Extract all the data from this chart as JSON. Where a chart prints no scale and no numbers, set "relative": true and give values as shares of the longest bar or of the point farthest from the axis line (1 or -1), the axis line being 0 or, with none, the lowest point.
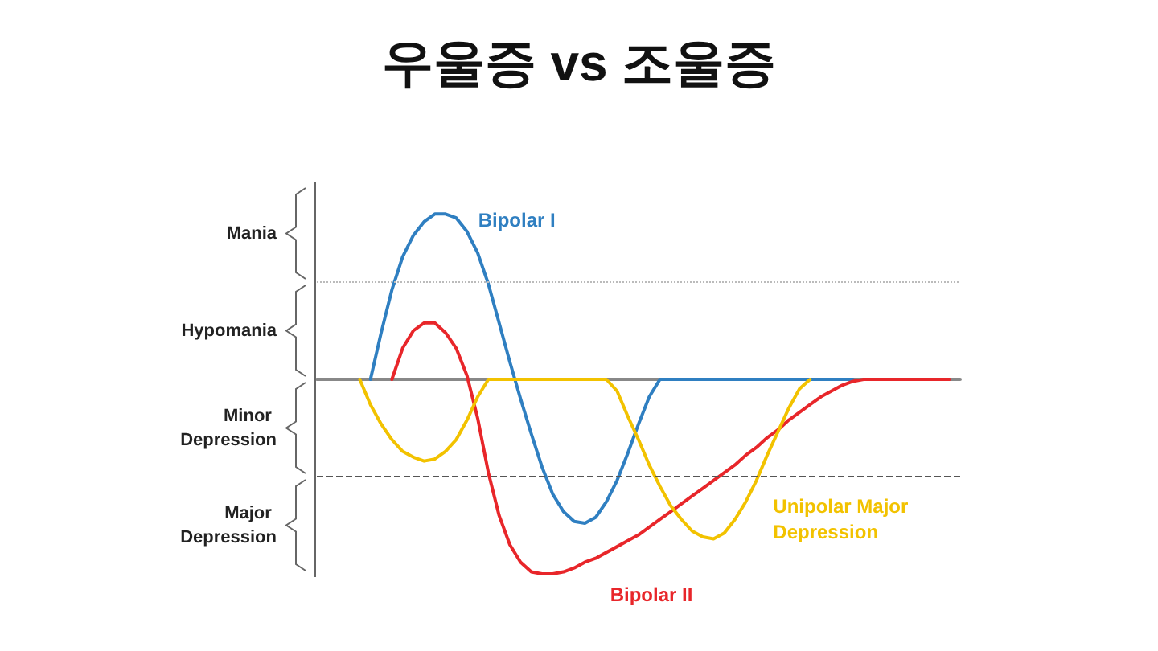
{
  "chart_data": {
    "type": "line",
    "relative": true,
    "title": "우울증 vs 조울증",
    "grid": false,
    "legend": false,
    "marker": "none",
    "line_style": "solid",
    "categories": [
      null,
      null,
      null,
      null,
      null,
      null,
      null,
      null,
      null,
      null,
      null,
      null,
      null,
      null,
      null,
      null,
      null,
      null,
      null,
      null,
      null,
      null,
      null,
      null,
      null,
      null,
      null,
      null,
      null,
      null,
      null,
      null,
      null,
      null,
      null,
      null,
      null,
      null,
      null,
      null,
      null,
      null,
      null,
      null,
      null,
      null,
      null,
      null,
      null,
      null,
      null,
      null,
      null,
      null,
      null,
      null,
      null,
      null,
      null,
      null,
      null
    ],
    "series": [
      {
        "name": "Bipolar I",
        "color": "#2f7fc1",
        "values": [
          null,
          null,
          null,
          null,
          null,
          0,
          0.24,
          0.46,
          0.63,
          0.74,
          0.81,
          0.85,
          0.85,
          0.83,
          0.76,
          0.65,
          0.49,
          0.29,
          0.09,
          -0.1,
          -0.28,
          -0.45,
          -0.59,
          -0.68,
          -0.73,
          -0.74,
          -0.71,
          -0.63,
          -0.52,
          -0.38,
          -0.23,
          -0.09,
          0,
          0,
          0,
          0,
          0,
          0,
          0,
          0,
          0,
          0,
          0,
          0,
          0,
          0,
          0,
          0,
          0,
          0,
          0,
          null,
          null,
          null,
          null,
          null,
          null,
          null,
          null,
          null,
          null
        ]
      },
      {
        "name": "Bipolar II",
        "color": "#e8262a",
        "values": [
          null,
          null,
          null,
          null,
          null,
          null,
          null,
          0,
          0.16,
          0.25,
          0.29,
          0.29,
          0.24,
          0.16,
          0.02,
          -0.2,
          -0.48,
          -0.7,
          -0.85,
          -0.94,
          -0.99,
          -1,
          -1,
          -0.99,
          -0.97,
          -0.94,
          -0.92,
          -0.89,
          -0.86,
          -0.83,
          -0.8,
          -0.76,
          -0.72,
          -0.68,
          -0.64,
          -0.6,
          -0.56,
          -0.52,
          -0.48,
          -0.44,
          -0.39,
          -0.35,
          -0.3,
          -0.26,
          -0.21,
          -0.17,
          -0.13,
          -0.09,
          -0.06,
          -0.03,
          -0.01,
          0,
          0,
          0,
          0,
          0,
          0,
          0,
          0,
          0,
          null
        ]
      },
      {
        "name": "Unipolar Major Depression",
        "color": "#f2c200",
        "values": [
          null,
          null,
          null,
          null,
          0,
          -0.13,
          -0.23,
          -0.31,
          -0.37,
          -0.4,
          -0.42,
          -0.41,
          -0.37,
          -0.31,
          -0.21,
          -0.09,
          0,
          0,
          0,
          0,
          0,
          0,
          0,
          0,
          0,
          0,
          0,
          0,
          -0.06,
          -0.19,
          -0.31,
          -0.44,
          -0.55,
          -0.65,
          -0.72,
          -0.78,
          -0.81,
          -0.82,
          -0.79,
          -0.72,
          -0.63,
          -0.52,
          -0.39,
          -0.27,
          -0.15,
          -0.05,
          0,
          null,
          null,
          null,
          null,
          null,
          null,
          null,
          null,
          null,
          null,
          null,
          null,
          null,
          null
        ]
      }
    ],
    "ref_lines": [
      {
        "axis": "y",
        "value": 0.5,
        "color": "#bbbbbb",
        "line_style": "dotted"
      },
      {
        "axis": "y",
        "value": -0.5,
        "color": "#555555",
        "line_style": "dashed"
      }
    ],
    "annotations": [
      "Mania",
      "Hypomania",
      "Minor Depression",
      "Major Depression"
    ]
  }
}
